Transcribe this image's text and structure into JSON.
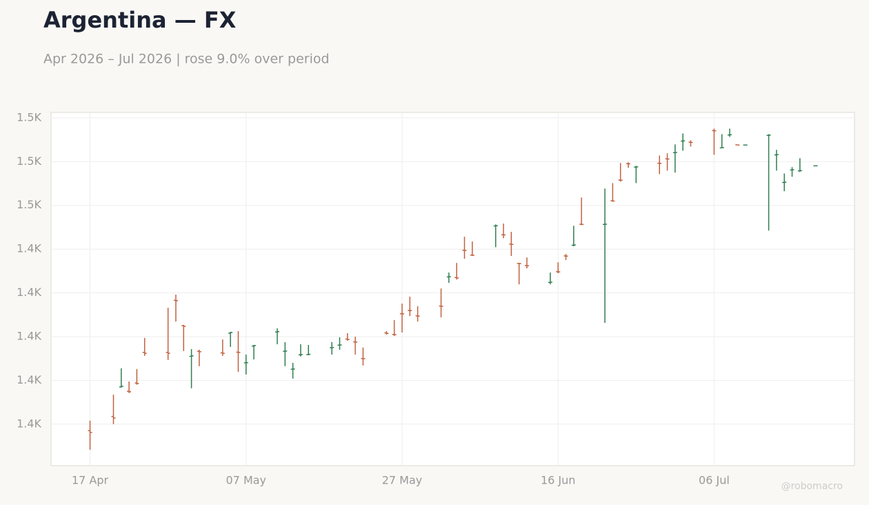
{
  "chart_data": {
    "type": "ohlc",
    "title": "Argentina — FX",
    "subtitle": "Apr 2026 – Jul 2026 | rose 9.0% over period",
    "watermark": "@robomacro",
    "up_color": "#2e7d4f",
    "down_color": "#c0603f",
    "grid": true,
    "xlim": [
      "2026-04-12",
      "2026-07-24"
    ],
    "xticks": [
      {
        "value": "2026-04-17",
        "label": "17 Apr"
      },
      {
        "value": "2026-05-07",
        "label": "07 May"
      },
      {
        "value": "2026-05-27",
        "label": "27 May"
      },
      {
        "value": "2026-06-16",
        "label": "16 Jun"
      },
      {
        "value": "2026-07-06",
        "label": "06 Jul"
      }
    ],
    "ylim": [
      1341,
      1502.5
    ],
    "yticks": [
      {
        "value": 1360,
        "label": "1.4K"
      },
      {
        "value": 1380,
        "label": "1.4K"
      },
      {
        "value": 1400,
        "label": "1.4K"
      },
      {
        "value": 1420,
        "label": "1.4K"
      },
      {
        "value": 1440,
        "label": "1.4K"
      },
      {
        "value": 1460,
        "label": "1.5K"
      },
      {
        "value": 1480,
        "label": "1.5K"
      },
      {
        "value": 1500,
        "label": "1.5K"
      }
    ],
    "x": [
      "2026-04-17",
      "2026-04-20",
      "2026-04-21",
      "2026-04-22",
      "2026-04-23",
      "2026-04-24",
      "2026-04-27",
      "2026-04-28",
      "2026-04-29",
      "2026-04-30",
      "2026-05-01",
      "2026-05-04",
      "2026-05-05",
      "2026-05-06",
      "2026-05-07",
      "2026-05-08",
      "2026-05-11",
      "2026-05-12",
      "2026-05-13",
      "2026-05-14",
      "2026-05-15",
      "2026-05-18",
      "2026-05-19",
      "2026-05-20",
      "2026-05-21",
      "2026-05-22",
      "2026-05-25",
      "2026-05-26",
      "2026-05-27",
      "2026-05-28",
      "2026-05-29",
      "2026-06-01",
      "2026-06-02",
      "2026-06-03",
      "2026-06-04",
      "2026-06-05",
      "2026-06-08",
      "2026-06-09",
      "2026-06-10",
      "2026-06-11",
      "2026-06-12",
      "2026-06-15",
      "2026-06-16",
      "2026-06-17",
      "2026-06-18",
      "2026-06-19",
      "2026-06-22",
      "2026-06-23",
      "2026-06-24",
      "2026-06-25",
      "2026-06-26",
      "2026-06-29",
      "2026-06-30",
      "2026-07-01",
      "2026-07-02",
      "2026-07-03",
      "2026-07-06",
      "2026-07-07",
      "2026-07-08",
      "2026-07-09",
      "2026-07-10",
      "2026-07-13",
      "2026-07-14",
      "2026-07-15",
      "2026-07-16",
      "2026-07-17",
      "2026-07-19"
    ],
    "open": [
      1357,
      1363.5,
      1377,
      1375,
      1378.8,
      1392.8,
      1392.8,
      1416.6,
      1405,
      1391,
      1393.3,
      1392.6,
      1401.6,
      1392.9,
      1388,
      1395.7,
      1402.1,
      1393.3,
      1385.1,
      1391.7,
      1391.8,
      1394.9,
      1396.1,
      1398.9,
      1397.6,
      1390,
      1401.7,
      1401,
      1410.5,
      1412,
      1409.5,
      1414,
      1427.3,
      1427,
      1439.5,
      1437.3,
      1450.6,
      1446.6,
      1442.3,
      1433.5,
      1432.5,
      1424.8,
      1429.7,
      1436.9,
      1441.8,
      1451.4,
      1451.3,
      1462.1,
      1471.6,
      1479.1,
      1477.5,
      1479.3,
      1481.3,
      1484.1,
      1489.4,
      1488.9,
      1494.2,
      1486.3,
      1492.2,
      1487.7,
      1487.6,
      1492,
      1483.1,
      1470.5,
      1476.2,
      1475.8,
      1478.1
    ],
    "high": [
      1361.6,
      1373.5,
      1385.5,
      1379.5,
      1385.2,
      1399.4,
      1413.2,
      1419.2,
      1405.4,
      1394.3,
      1394,
      1398.7,
      1402.2,
      1402.5,
      1391.8,
      1396.2,
      1403.8,
      1397.5,
      1388,
      1396.5,
      1396.2,
      1397.5,
      1399.7,
      1401.6,
      1400,
      1395,
      1402.5,
      1407.6,
      1415.1,
      1418.3,
      1413.9,
      1422,
      1429.3,
      1433.7,
      1445.7,
      1443.5,
      1451.3,
      1451.7,
      1447.9,
      1433.7,
      1436.2,
      1429.3,
      1434,
      1437.8,
      1450.7,
      1463.6,
      1467.7,
      1470.2,
      1479.4,
      1479.7,
      1478.1,
      1482.8,
      1483.8,
      1487.9,
      1492.9,
      1489.8,
      1495.1,
      1492.6,
      1495.1,
      1487.7,
      1487.6,
      1492.6,
      1485.4,
      1474.6,
      1477.5,
      1481.6,
      1478.1
    ],
    "low": [
      1348.3,
      1360,
      1376.7,
      1374.2,
      1378,
      1391.2,
      1389.3,
      1406.9,
      1393.4,
      1376.4,
      1386.5,
      1391.2,
      1395.3,
      1383.9,
      1382.7,
      1389.6,
      1396.5,
      1386.5,
      1380.8,
      1390.9,
      1391.5,
      1391.8,
      1394,
      1398.1,
      1391.8,
      1386.8,
      1400.9,
      1400.3,
      1401.9,
      1409.4,
      1406.9,
      1408.8,
      1424.6,
      1426.1,
      1435.6,
      1436.9,
      1440.9,
      1445,
      1436.9,
      1423.9,
      1431.2,
      1423.9,
      1429,
      1435,
      1441.3,
      1451,
      1406.3,
      1461.7,
      1470.9,
      1477.2,
      1470.2,
      1474.3,
      1475.9,
      1475,
      1485,
      1486.9,
      1483.1,
      1486.3,
      1491.3,
      1487.6,
      1487.6,
      1448.5,
      1475.9,
      1466.5,
      1473.1,
      1475.3,
      1478.1
    ],
    "close": [
      1356.2,
      1362.8,
      1377.3,
      1374.8,
      1378.6,
      1392.4,
      1392.4,
      1416.4,
      1404.7,
      1391.2,
      1393.1,
      1392.4,
      1401.9,
      1392.8,
      1388.1,
      1395.9,
      1402.3,
      1393.4,
      1385.2,
      1391.8,
      1391.9,
      1395,
      1396.2,
      1398.7,
      1397.5,
      1389.9,
      1401.5,
      1400.9,
      1410.4,
      1411.9,
      1409.4,
      1413.9,
      1427.4,
      1426.8,
      1439.4,
      1437.2,
      1450.7,
      1446.5,
      1442.2,
      1433.4,
      1432.4,
      1424.9,
      1429.6,
      1436.8,
      1441.9,
      1451.3,
      1451.4,
      1462,
      1471.5,
      1479,
      1477.6,
      1479.2,
      1481.2,
      1484.2,
      1489.5,
      1488.8,
      1494.1,
      1486.4,
      1492.3,
      1487.6,
      1487.6,
      1492.1,
      1483.2,
      1470.6,
      1476.3,
      1475.9,
      1478.1
    ]
  }
}
